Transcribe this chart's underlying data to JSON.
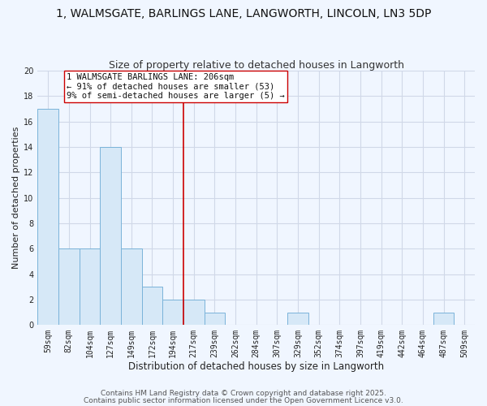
{
  "title": "1, WALMSGATE, BARLINGS LANE, LANGWORTH, LINCOLN, LN3 5DP",
  "subtitle": "Size of property relative to detached houses in Langworth",
  "xlabel": "Distribution of detached houses by size in Langworth",
  "ylabel": "Number of detached properties",
  "bar_labels": [
    "59sqm",
    "82sqm",
    "104sqm",
    "127sqm",
    "149sqm",
    "172sqm",
    "194sqm",
    "217sqm",
    "239sqm",
    "262sqm",
    "284sqm",
    "307sqm",
    "329sqm",
    "352sqm",
    "374sqm",
    "397sqm",
    "419sqm",
    "442sqm",
    "464sqm",
    "487sqm",
    "509sqm"
  ],
  "bar_values": [
    17,
    6,
    6,
    14,
    6,
    3,
    2,
    2,
    1,
    0,
    0,
    0,
    1,
    0,
    0,
    0,
    0,
    0,
    0,
    1,
    0
  ],
  "bar_color": "#d6e8f7",
  "bar_edge_color": "#7ab3d9",
  "ylim": [
    0,
    20
  ],
  "yticks": [
    0,
    2,
    4,
    6,
    8,
    10,
    12,
    14,
    16,
    18,
    20
  ],
  "vline_x": 6.5,
  "vline_color": "#cc0000",
  "annotation_line1": "1 WALMSGATE BARLINGS LANE: 206sqm",
  "annotation_line2": "← 91% of detached houses are smaller (53)",
  "annotation_line3": "9% of semi-detached houses are larger (5) →",
  "annotation_box_color": "#ffffff",
  "annotation_box_edge": "#cc0000",
  "footer1": "Contains HM Land Registry data © Crown copyright and database right 2025.",
  "footer2": "Contains public sector information licensed under the Open Government Licence v3.0.",
  "background_color": "#f0f6ff",
  "grid_color": "#d0d8e8",
  "title_fontsize": 10,
  "subtitle_fontsize": 9,
  "xlabel_fontsize": 8.5,
  "ylabel_fontsize": 8,
  "tick_fontsize": 7,
  "annotation_fontsize": 7.5,
  "footer_fontsize": 6.5
}
